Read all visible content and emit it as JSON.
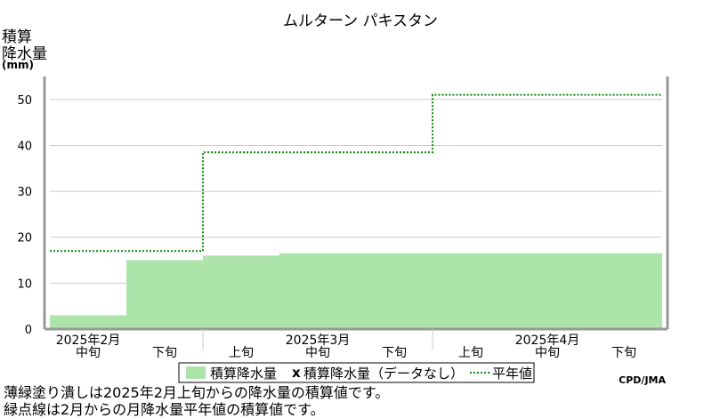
{
  "title": "ムルターン パキスタン",
  "ylabel": [
    "積算",
    "降水量"
  ],
  "yunit": "(mm)",
  "colors": {
    "fill": "#ace4aa",
    "normal_line": "#118811",
    "axis": "#999999",
    "grid": "#cccccc"
  },
  "legend": {
    "fill_label": "積算降水量",
    "nodata_label": "積算降水量（データなし）",
    "normal_label": "平年値",
    "nodata_marker": "x"
  },
  "credit": "CPD/JMA",
  "notes": [
    "薄緑塗り潰しは2025年2月上旬からの降水量の積算値です。",
    "緑点線は2月からの月降水量平年値の積算値です。"
  ],
  "chart_data": {
    "type": "area",
    "title": "ムルターン パキスタン",
    "ylabel": "積算降水量 (mm)",
    "ylim": [
      0,
      55
    ],
    "yticks": [
      0,
      10,
      20,
      30,
      40,
      50
    ],
    "grid": true,
    "legend_position": "bottom",
    "periods": [
      "2025年2月中旬",
      "2025年2月下旬",
      "2025年3月上旬",
      "2025年3月中旬",
      "2025年3月下旬",
      "2025年4月上旬",
      "2025年4月中旬",
      "2025年4月下旬"
    ],
    "x_ticks": [
      {
        "pos": 0.5,
        "label": "中旬",
        "month": "2025年2月"
      },
      {
        "pos": 1.5,
        "label": "下旬"
      },
      {
        "pos": 2.5,
        "label": "上旬"
      },
      {
        "pos": 3.5,
        "label": "中旬",
        "month": "2025年3月"
      },
      {
        "pos": 4.5,
        "label": "下旬"
      },
      {
        "pos": 5.5,
        "label": "上旬"
      },
      {
        "pos": 6.5,
        "label": "中旬",
        "month": "2025年4月"
      },
      {
        "pos": 7.5,
        "label": "下旬"
      }
    ],
    "month_boundaries": [
      2,
      5
    ],
    "series": [
      {
        "name": "積算降水量",
        "type": "area",
        "values": [
          3,
          15,
          16,
          16.5,
          16.5,
          16.5,
          16.5,
          16.5
        ]
      },
      {
        "name": "平年値",
        "type": "step-dotted",
        "steps": [
          {
            "start": 0,
            "end": 2,
            "value": 17
          },
          {
            "start": 2,
            "end": 5,
            "value": 38.5
          },
          {
            "start": 5,
            "end": 8,
            "value": 51
          }
        ]
      }
    ]
  }
}
